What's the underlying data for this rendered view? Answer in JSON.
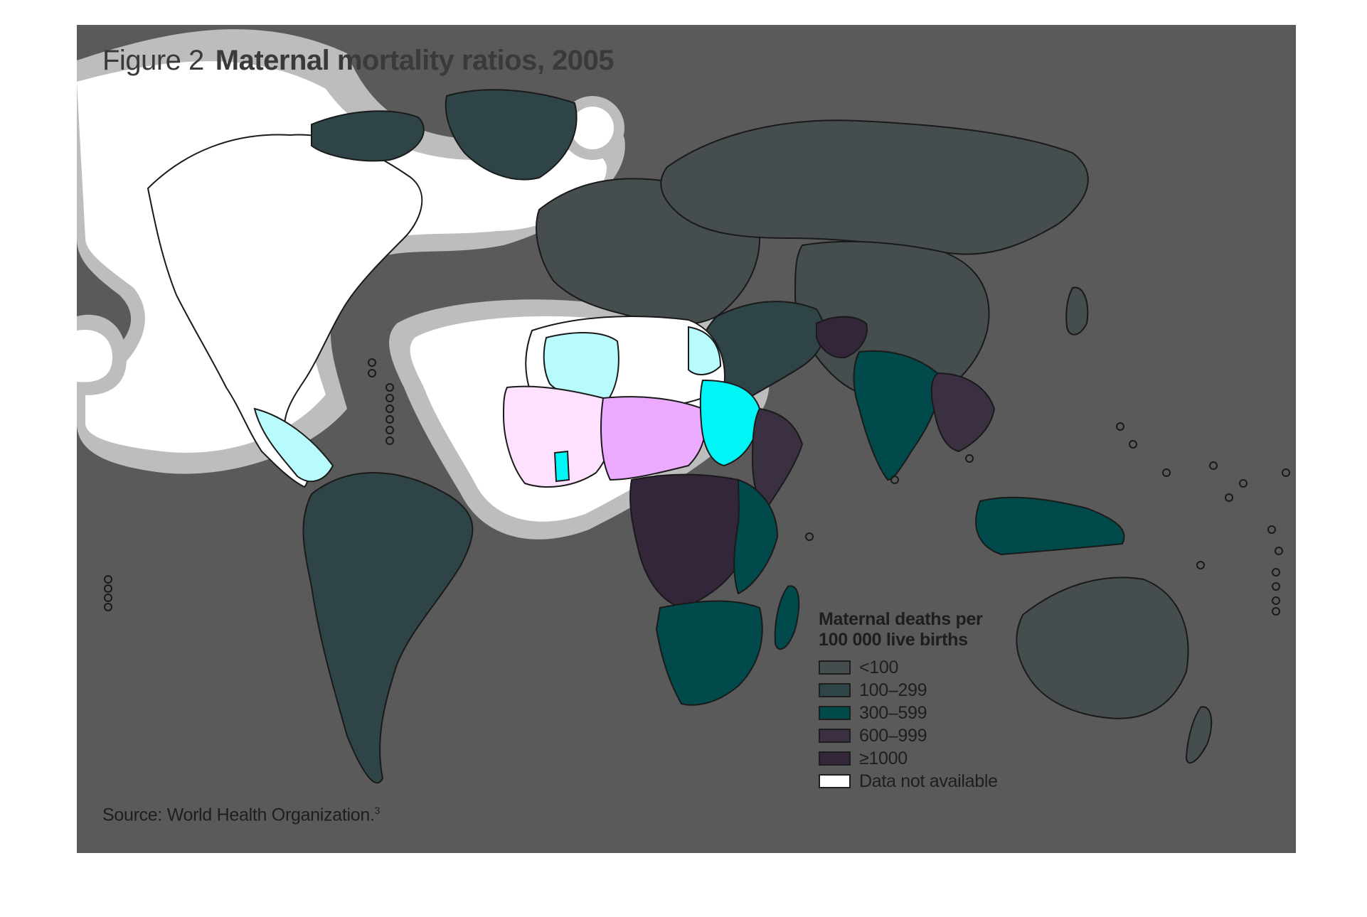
{
  "figure": {
    "label": "Figure 2",
    "title": "Maternal mortality ratios, 2005",
    "source": "Source: World Health Organization.",
    "source_note": "3"
  },
  "colors": {
    "background": "#5a5a5a",
    "lt100": "#454d4f",
    "c100_299": "#2f4447",
    "c300_599": "#004a4c",
    "c600_999": "#3b3042",
    "gte1000": "#33253a",
    "not_available": "#ffffff",
    "border": "#1a1a1a"
  },
  "legend": {
    "title": "Maternal deaths per 100 000 live births",
    "items": [
      {
        "label": "<100",
        "color": "#454d4f"
      },
      {
        "label": "100–299",
        "color": "#2f4447"
      },
      {
        "label": "300–599",
        "color": "#004a4c"
      },
      {
        "label": "600–999",
        "color": "#3b3042"
      },
      {
        "label": "≥1000",
        "color": "#33253a"
      },
      {
        "label": "Data not available",
        "color": "#ffffff"
      }
    ]
  },
  "map_data": {
    "type": "choropleth",
    "indicator": "Maternal mortality ratio",
    "year": 2005,
    "regions": [
      {
        "name": "North America",
        "class": "Data not available"
      },
      {
        "name": "Greenland",
        "class": "100–299"
      },
      {
        "name": "South America",
        "class": "100–299"
      },
      {
        "name": "Europe",
        "class": "<100"
      },
      {
        "name": "Russia",
        "class": "<100"
      },
      {
        "name": "China",
        "class": "<100"
      },
      {
        "name": "India",
        "class": "300–599"
      },
      {
        "name": "Afghanistan",
        "class": "≥1000"
      },
      {
        "name": "Central Africa",
        "class": "≥1000"
      },
      {
        "name": "East Africa",
        "class": "600–999"
      },
      {
        "name": "Southern Africa",
        "class": "300–599"
      },
      {
        "name": "Indonesia",
        "class": "300–599"
      },
      {
        "name": "Australia",
        "class": "<100"
      }
    ]
  }
}
